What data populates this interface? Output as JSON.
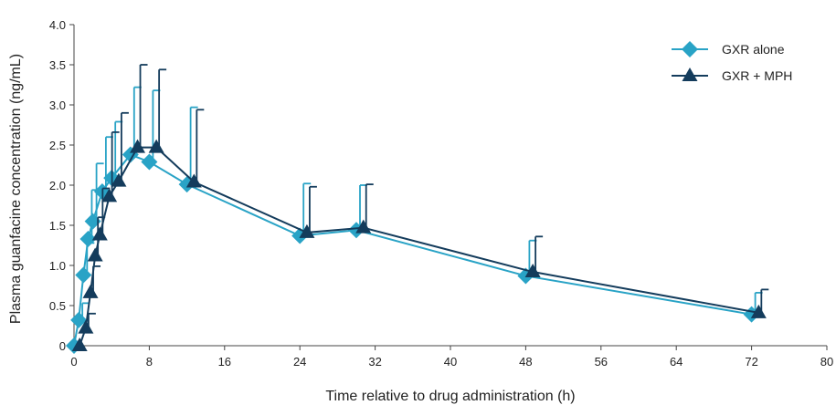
{
  "chart_data": {
    "type": "line",
    "xlabel": "Time relative to drug administration (h)",
    "ylabel": "Plasma guanfacine concentration (ng/mL)",
    "xlim": [
      0,
      80
    ],
    "ylim": [
      0,
      4.0
    ],
    "xticks": [
      0,
      8,
      16,
      24,
      32,
      40,
      48,
      56,
      64,
      72,
      80
    ],
    "xtick_labels": [
      "0",
      "8",
      "16",
      "24",
      "32",
      "40",
      "48",
      "56",
      "64",
      "72",
      "80"
    ],
    "yticks": [
      0,
      0.5,
      1.0,
      1.5,
      2.0,
      2.5,
      3.0,
      3.5,
      4.0
    ],
    "ytick_labels": [
      "0",
      "0.5",
      "1.0",
      "1.5",
      "2.0",
      "2.5",
      "3.0",
      "3.5",
      "4.0"
    ],
    "grid": false,
    "legend_position": "top-right",
    "series": [
      {
        "name": "GXR alone",
        "color": "#29a3c6",
        "marker": "diamond",
        "x": [
          0,
          0.5,
          1,
          1.5,
          2,
          3,
          4,
          6,
          8,
          12,
          24,
          30,
          48,
          72
        ],
        "y": [
          0,
          0.32,
          0.88,
          1.33,
          1.55,
          1.92,
          2.09,
          2.38,
          2.29,
          2.01,
          1.37,
          1.44,
          0.87,
          0.39
        ],
        "error_upper": [
          0,
          0.53,
          1.28,
          1.94,
          2.27,
          2.6,
          2.79,
          3.22,
          3.18,
          2.97,
          2.02,
          2.0,
          1.31,
          0.66
        ]
      },
      {
        "name": "GXR + MPH",
        "color": "#143c5c",
        "marker": "triangle",
        "x": [
          0,
          0.5,
          1,
          1.5,
          2,
          3,
          4,
          6,
          8,
          12,
          24,
          30,
          48,
          72
        ],
        "y": [
          0,
          0.22,
          0.66,
          1.12,
          1.38,
          1.86,
          2.05,
          2.47,
          2.47,
          2.04,
          1.41,
          1.47,
          0.92,
          0.41
        ],
        "error_upper": [
          0,
          0.4,
          0.99,
          1.6,
          1.96,
          2.66,
          2.9,
          3.5,
          3.44,
          2.94,
          1.98,
          2.01,
          1.36,
          0.7
        ]
      }
    ]
  }
}
